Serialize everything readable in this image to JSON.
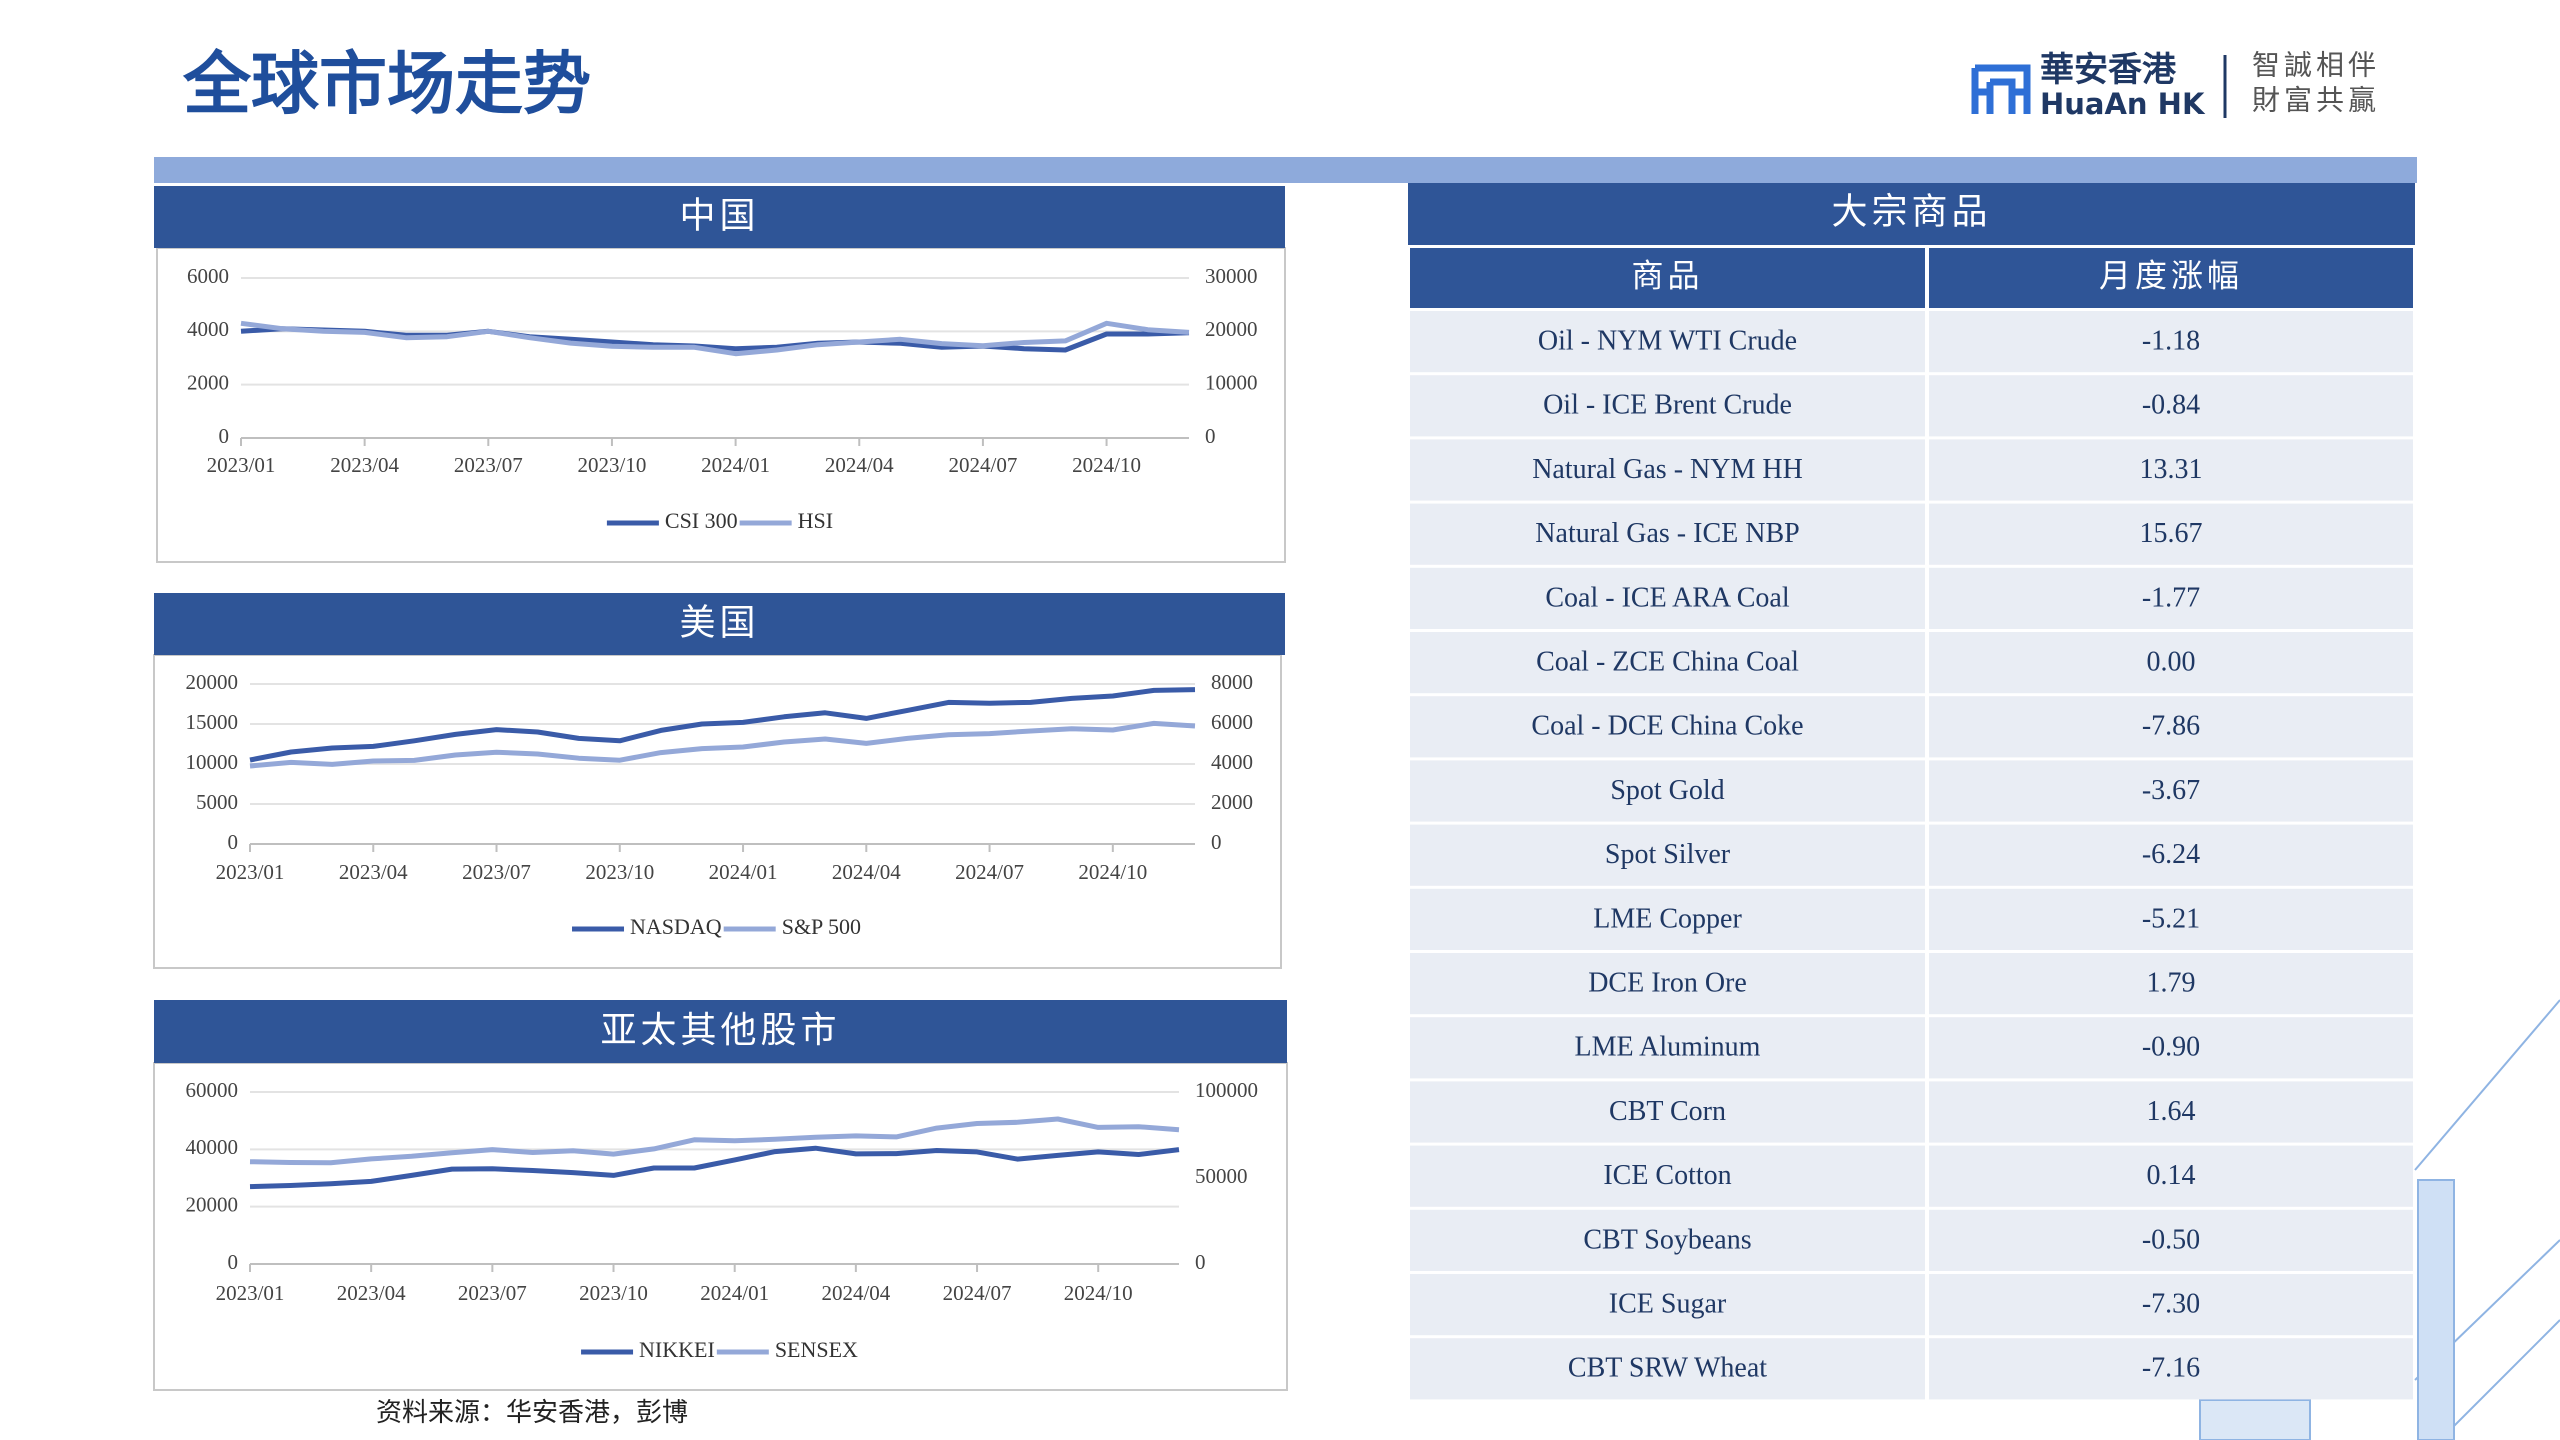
{
  "header": {
    "title": "全球市场走势",
    "logo": {
      "name_cn": "華安香港",
      "name_en": "HuaAn HK",
      "slogan_1": "智誠相伴",
      "slogan_2": "財富共贏"
    }
  },
  "chart_data": [
    {
      "type": "line",
      "title": "中国",
      "x": [
        "2023/01",
        "2023/02",
        "2023/03",
        "2023/04",
        "2023/05",
        "2023/06",
        "2023/07",
        "2023/08",
        "2023/09",
        "2023/10",
        "2023/11",
        "2023/12",
        "2024/01",
        "2024/02",
        "2024/03",
        "2024/04",
        "2024/05",
        "2024/06",
        "2024/07",
        "2024/08",
        "2024/09",
        "2024/10",
        "2024/11",
        "2024/12"
      ],
      "xticks": [
        "2023/01",
        "2023/04",
        "2023/07",
        "2023/10",
        "2024/01",
        "2024/04",
        "2024/07",
        "2024/10"
      ],
      "ylim": [
        0,
        6000
      ],
      "yticks": [
        0,
        2000,
        4000,
        6000
      ],
      "y2lim": [
        0,
        30000
      ],
      "y2ticks": [
        0,
        10000,
        20000,
        30000
      ],
      "grid": true,
      "series": [
        {
          "name": "CSI 300",
          "color": "#3a5ba8",
          "values": [
            4000,
            4100,
            4050,
            4000,
            3850,
            3850,
            4000,
            3800,
            3700,
            3600,
            3500,
            3450,
            3350,
            3400,
            3550,
            3600,
            3550,
            3400,
            3450,
            3350,
            3300,
            3900,
            3900,
            3950
          ]
        },
        {
          "name": "HSI",
          "color": "#94a8d8",
          "axis": "y2",
          "values": [
            21500,
            20500,
            20000,
            19800,
            18800,
            19000,
            20000,
            18800,
            17800,
            17200,
            17000,
            17000,
            15800,
            16500,
            17500,
            18000,
            18500,
            17700,
            17300,
            17900,
            18200,
            21500,
            20300,
            19800
          ]
        }
      ]
    },
    {
      "type": "line",
      "title": "美国",
      "x": [
        "2023/01",
        "2023/02",
        "2023/03",
        "2023/04",
        "2023/05",
        "2023/06",
        "2023/07",
        "2023/08",
        "2023/09",
        "2023/10",
        "2023/11",
        "2023/12",
        "2024/01",
        "2024/02",
        "2024/03",
        "2024/04",
        "2024/05",
        "2024/06",
        "2024/07",
        "2024/08",
        "2024/09",
        "2024/10",
        "2024/11",
        "2024/12"
      ],
      "xticks": [
        "2023/01",
        "2023/04",
        "2023/07",
        "2023/10",
        "2024/01",
        "2024/04",
        "2024/07",
        "2024/10"
      ],
      "ylim": [
        0,
        20000
      ],
      "yticks": [
        0,
        5000,
        10000,
        15000,
        20000
      ],
      "y2lim": [
        0,
        8000
      ],
      "y2ticks": [
        0,
        2000,
        4000,
        6000,
        8000
      ],
      "grid": true,
      "series": [
        {
          "name": "NASDAQ",
          "color": "#3a5ba8",
          "values": [
            10500,
            11500,
            12000,
            12200,
            12900,
            13700,
            14300,
            14000,
            13200,
            12900,
            14200,
            15000,
            15200,
            15900,
            16400,
            15700,
            16700,
            17700,
            17600,
            17700,
            18200,
            18500,
            19200,
            19300
          ]
        },
        {
          "name": "S&P 500",
          "color": "#94a8d8",
          "axis": "y2",
          "values": [
            3900,
            4080,
            3980,
            4150,
            4180,
            4450,
            4590,
            4500,
            4290,
            4190,
            4570,
            4770,
            4850,
            5100,
            5250,
            5030,
            5280,
            5460,
            5520,
            5650,
            5760,
            5700,
            6030,
            5900
          ]
        }
      ]
    },
    {
      "type": "line",
      "title": "亚太其他股市",
      "x": [
        "2023/01",
        "2023/02",
        "2023/03",
        "2023/04",
        "2023/05",
        "2023/06",
        "2023/07",
        "2023/08",
        "2023/09",
        "2023/10",
        "2023/11",
        "2023/12",
        "2024/01",
        "2024/02",
        "2024/03",
        "2024/04",
        "2024/05",
        "2024/06",
        "2024/07",
        "2024/08",
        "2024/09",
        "2024/10",
        "2024/11",
        "2024/12"
      ],
      "xticks": [
        "2023/01",
        "2023/04",
        "2023/07",
        "2023/10",
        "2024/01",
        "2024/04",
        "2024/07",
        "2024/10"
      ],
      "ylim": [
        0,
        60000
      ],
      "yticks": [
        0,
        20000,
        40000,
        60000
      ],
      "y2lim": [
        0,
        100000
      ],
      "y2ticks": [
        0,
        50000,
        100000
      ],
      "grid": true,
      "series": [
        {
          "name": "NIKKEI",
          "color": "#3a5ba8",
          "values": [
            27000,
            27400,
            28000,
            28800,
            30900,
            33100,
            33200,
            32600,
            31900,
            30900,
            33500,
            33500,
            36300,
            39200,
            40400,
            38400,
            38500,
            39600,
            39100,
            36600,
            37900,
            39100,
            38200,
            39900
          ]
        },
        {
          "name": "SENSEX",
          "color": "#94a8d8",
          "axis": "y2",
          "values": [
            59500,
            59000,
            58900,
            61100,
            62600,
            64700,
            66500,
            64800,
            65800,
            63900,
            66900,
            72200,
            71700,
            72500,
            73700,
            74500,
            73900,
            79000,
            81700,
            82400,
            84300,
            79400,
            79800,
            78100
          ]
        }
      ]
    }
  ],
  "table": {
    "title": "大宗商品",
    "columns": [
      "商品",
      "月度涨幅"
    ],
    "rows": [
      [
        "Oil - NYM WTI Crude",
        "-1.18"
      ],
      [
        "Oil - ICE Brent Crude",
        "-0.84"
      ],
      [
        "Natural Gas - NYM HH",
        "13.31"
      ],
      [
        "Natural Gas - ICE NBP",
        "15.67"
      ],
      [
        "Coal - ICE ARA Coal",
        "-1.77"
      ],
      [
        "Coal - ZCE China Coal",
        "0.00"
      ],
      [
        "Coal - DCE China Coke",
        "-7.86"
      ],
      [
        "Spot Gold",
        "-3.67"
      ],
      [
        "Spot Silver",
        "-6.24"
      ],
      [
        "LME Copper",
        "-5.21"
      ],
      [
        "DCE Iron Ore",
        "1.79"
      ],
      [
        "LME Aluminum",
        "-0.90"
      ],
      [
        "CBT Corn",
        "1.64"
      ],
      [
        "ICE Cotton",
        "0.14"
      ],
      [
        "CBT Soybeans",
        "-0.50"
      ],
      [
        "ICE Sugar",
        "-7.30"
      ],
      [
        "CBT SRW Wheat",
        "-7.16"
      ]
    ]
  },
  "source": "资料来源：华安香港，彭博"
}
